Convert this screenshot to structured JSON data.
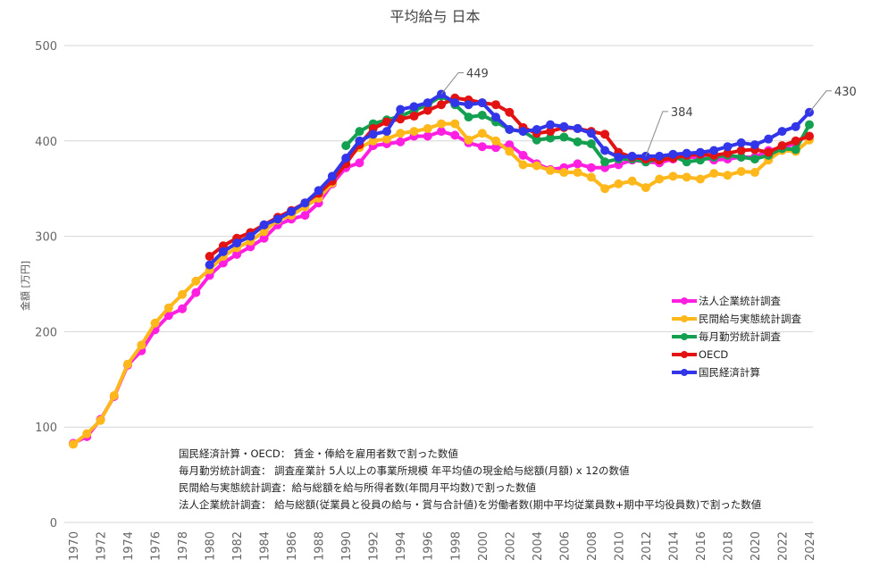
{
  "chart_data": {
    "type": "line",
    "title": "平均給与 日本",
    "xlabel": "",
    "ylabel": "金額 [万円]",
    "ylim": [
      0,
      500
    ],
    "xlim": [
      1970,
      2024
    ],
    "yticks": [
      "0",
      "100",
      "200",
      "300",
      "400",
      "500"
    ],
    "xticks": [
      "1970",
      "1972",
      "1974",
      "1976",
      "1978",
      "1980",
      "1982",
      "1984",
      "1986",
      "1988",
      "1990",
      "1992",
      "1994",
      "1996",
      "1998",
      "2000",
      "2002",
      "2004",
      "2006",
      "2008",
      "2010",
      "2012",
      "2014",
      "2016",
      "2018",
      "2020",
      "2022",
      "2024"
    ],
    "grid": true,
    "legend_position": "right",
    "series": [
      {
        "name": "法人企業統計調査",
        "color": "#ff1fe0",
        "start": 1970,
        "values": [
          83,
          90,
          108,
          132,
          165,
          180,
          202,
          217,
          224,
          241,
          259,
          272,
          281,
          289,
          298,
          312,
          318,
          322,
          335,
          355,
          372,
          377,
          395,
          397,
          399,
          405,
          405,
          410,
          406,
          398,
          394,
          393,
          396,
          385,
          376,
          370,
          372,
          376,
          372,
          372,
          375,
          380,
          378,
          377,
          381,
          383,
          383,
          380,
          381,
          383,
          383,
          390,
          393,
          397
        ]
      },
      {
        "name": "民間給与実態統計調査",
        "color": "#ffb81c",
        "start": 1970,
        "values": [
          82,
          93,
          107,
          133,
          166,
          186,
          209,
          225,
          239,
          253,
          265,
          279,
          288,
          295,
          305,
          317,
          322,
          331,
          340,
          356,
          380,
          393,
          400,
          402,
          408,
          410,
          413,
          418,
          418,
          401,
          408,
          400,
          389,
          375,
          374,
          369,
          367,
          367,
          362,
          350,
          355,
          358,
          351,
          360,
          363,
          362,
          360,
          366,
          364,
          368,
          367,
          380,
          390,
          389,
          401
        ]
      },
      {
        "name": "毎月勤労統計調査",
        "color": "#13a050",
        "start": 1990,
        "values": [
          395,
          410,
          418,
          422,
          426,
          432,
          438,
          447,
          438,
          425,
          427,
          420,
          412,
          410,
          401,
          403,
          404,
          399,
          397,
          378,
          381,
          381,
          378,
          381,
          384,
          378,
          380,
          383,
          385,
          383,
          381,
          385,
          392,
          391,
          417
        ]
      },
      {
        "name": "OECD",
        "color": "#e31313",
        "start": 1980,
        "values": [
          279,
          290,
          298,
          304,
          312,
          320,
          327,
          335,
          345,
          358,
          376,
          396,
          413,
          420,
          423,
          426,
          432,
          438,
          445,
          443,
          440,
          438,
          430,
          414,
          408,
          410,
          414,
          413,
          410,
          407,
          388,
          383,
          381,
          380,
          382,
          385,
          386,
          385,
          387,
          390,
          391,
          388,
          395,
          400,
          405
        ]
      },
      {
        "name": "国民経済計算",
        "color": "#3236e8",
        "start": 1980,
        "values": [
          270,
          284,
          293,
          300,
          312,
          318,
          326,
          335,
          348,
          363,
          382,
          400,
          407,
          410,
          433,
          436,
          440,
          449,
          440,
          438,
          440,
          425,
          412,
          410,
          412,
          417,
          415,
          413,
          408,
          390,
          383,
          384,
          384,
          384,
          386,
          387,
          388,
          390,
          394,
          398,
          396,
          402,
          410,
          415,
          430
        ]
      }
    ],
    "annotations": [
      {
        "label": "449",
        "year": 1997,
        "series": 4
      },
      {
        "label": "384",
        "year": 2012,
        "series": 4
      },
      {
        "label": "430",
        "year": 2024,
        "series": 4
      }
    ],
    "notes": [
      "国民経済計算・OECD： 賃金・俸給を雇用者数で割った数値",
      "毎月勤労統計調査： 調査産業計 5人以上の事業所規模 年平均値の現金給与総額(月額) x 12の数値",
      "民間給与実態統計調査：給与総額を給与所得者数(年間月平均数)で割った数値",
      "法人企業統計調査： 給与総額(従業員と役員の給与・賞与合計値)を労働者数(期中平均従業員数+期中平均役員数)で割った数値"
    ]
  }
}
